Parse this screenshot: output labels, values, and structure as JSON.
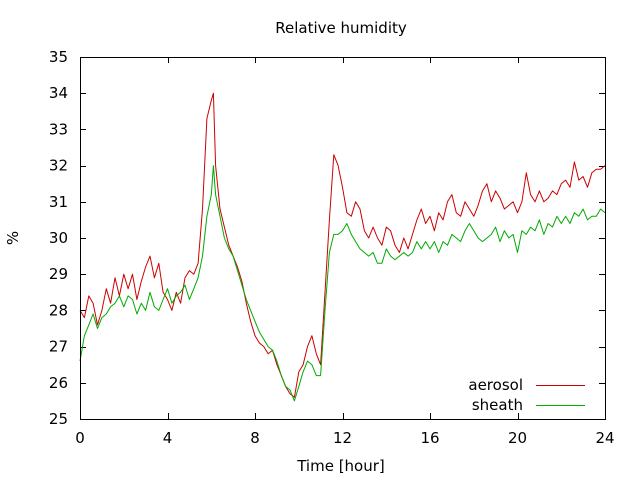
{
  "chart_data": {
    "type": "line",
    "title": "Relative humidity",
    "xlabel": "Time [hour]",
    "ylabel": "%",
    "xlim": [
      0,
      24
    ],
    "ylim": [
      25,
      35
    ],
    "xticks": [
      0,
      4,
      8,
      12,
      16,
      20,
      24
    ],
    "yticks": [
      25,
      26,
      27,
      28,
      29,
      30,
      31,
      32,
      33,
      34,
      35
    ],
    "grid": false,
    "legend_position": "bottom-right",
    "series": [
      {
        "name": "aerosol",
        "color": "#cc0000",
        "points": [
          [
            0.0,
            28.0
          ],
          [
            0.2,
            27.8
          ],
          [
            0.4,
            28.4
          ],
          [
            0.6,
            28.2
          ],
          [
            0.8,
            27.6
          ],
          [
            1.0,
            28.0
          ],
          [
            1.2,
            28.6
          ],
          [
            1.4,
            28.2
          ],
          [
            1.6,
            28.9
          ],
          [
            1.8,
            28.4
          ],
          [
            2.0,
            29.0
          ],
          [
            2.2,
            28.6
          ],
          [
            2.4,
            29.0
          ],
          [
            2.6,
            28.3
          ],
          [
            2.8,
            28.8
          ],
          [
            3.0,
            29.2
          ],
          [
            3.2,
            29.5
          ],
          [
            3.4,
            28.9
          ],
          [
            3.6,
            29.3
          ],
          [
            3.8,
            28.5
          ],
          [
            4.0,
            28.3
          ],
          [
            4.2,
            28.0
          ],
          [
            4.4,
            28.5
          ],
          [
            4.6,
            28.2
          ],
          [
            4.8,
            28.9
          ],
          [
            5.0,
            29.1
          ],
          [
            5.2,
            29.0
          ],
          [
            5.4,
            29.3
          ],
          [
            5.6,
            30.8
          ],
          [
            5.8,
            33.3
          ],
          [
            6.0,
            33.8
          ],
          [
            6.1,
            34.0
          ],
          [
            6.2,
            32.0
          ],
          [
            6.4,
            30.8
          ],
          [
            6.6,
            30.3
          ],
          [
            6.8,
            29.8
          ],
          [
            7.0,
            29.5
          ],
          [
            7.2,
            29.2
          ],
          [
            7.4,
            28.8
          ],
          [
            7.6,
            28.2
          ],
          [
            7.8,
            27.7
          ],
          [
            8.0,
            27.3
          ],
          [
            8.2,
            27.1
          ],
          [
            8.4,
            27.0
          ],
          [
            8.6,
            26.8
          ],
          [
            8.8,
            26.9
          ],
          [
            9.0,
            26.5
          ],
          [
            9.2,
            26.2
          ],
          [
            9.4,
            25.9
          ],
          [
            9.6,
            25.7
          ],
          [
            9.8,
            25.6
          ],
          [
            10.0,
            26.3
          ],
          [
            10.2,
            26.5
          ],
          [
            10.4,
            27.0
          ],
          [
            10.6,
            27.3
          ],
          [
            10.8,
            26.8
          ],
          [
            11.0,
            26.5
          ],
          [
            11.2,
            28.5
          ],
          [
            11.4,
            30.5
          ],
          [
            11.6,
            32.3
          ],
          [
            11.8,
            32.0
          ],
          [
            12.0,
            31.4
          ],
          [
            12.2,
            30.7
          ],
          [
            12.4,
            30.6
          ],
          [
            12.6,
            31.0
          ],
          [
            12.8,
            30.8
          ],
          [
            13.0,
            30.2
          ],
          [
            13.2,
            30.0
          ],
          [
            13.4,
            30.3
          ],
          [
            13.6,
            30.0
          ],
          [
            13.8,
            29.8
          ],
          [
            14.0,
            30.3
          ],
          [
            14.2,
            30.2
          ],
          [
            14.4,
            29.8
          ],
          [
            14.6,
            29.6
          ],
          [
            14.8,
            30.0
          ],
          [
            15.0,
            29.7
          ],
          [
            15.2,
            30.1
          ],
          [
            15.4,
            30.5
          ],
          [
            15.6,
            30.8
          ],
          [
            15.8,
            30.4
          ],
          [
            16.0,
            30.6
          ],
          [
            16.2,
            30.2
          ],
          [
            16.4,
            30.7
          ],
          [
            16.6,
            30.5
          ],
          [
            16.8,
            31.0
          ],
          [
            17.0,
            31.2
          ],
          [
            17.2,
            30.7
          ],
          [
            17.4,
            30.6
          ],
          [
            17.6,
            31.0
          ],
          [
            17.8,
            30.8
          ],
          [
            18.0,
            30.6
          ],
          [
            18.2,
            30.9
          ],
          [
            18.4,
            31.3
          ],
          [
            18.6,
            31.5
          ],
          [
            18.8,
            31.0
          ],
          [
            19.0,
            31.3
          ],
          [
            19.2,
            31.1
          ],
          [
            19.4,
            30.8
          ],
          [
            19.6,
            30.9
          ],
          [
            19.8,
            31.0
          ],
          [
            20.0,
            30.7
          ],
          [
            20.2,
            31.0
          ],
          [
            20.4,
            31.8
          ],
          [
            20.6,
            31.2
          ],
          [
            20.8,
            31.0
          ],
          [
            21.0,
            31.3
          ],
          [
            21.2,
            31.0
          ],
          [
            21.4,
            31.1
          ],
          [
            21.6,
            31.3
          ],
          [
            21.8,
            31.2
          ],
          [
            22.0,
            31.5
          ],
          [
            22.2,
            31.6
          ],
          [
            22.4,
            31.4
          ],
          [
            22.6,
            32.1
          ],
          [
            22.8,
            31.6
          ],
          [
            23.0,
            31.7
          ],
          [
            23.2,
            31.4
          ],
          [
            23.4,
            31.8
          ],
          [
            23.6,
            31.9
          ],
          [
            23.8,
            31.9
          ],
          [
            24.0,
            32.0
          ]
        ]
      },
      {
        "name": "sheath",
        "color": "#00aa00",
        "points": [
          [
            0.0,
            26.6
          ],
          [
            0.2,
            27.3
          ],
          [
            0.4,
            27.6
          ],
          [
            0.6,
            27.9
          ],
          [
            0.8,
            27.5
          ],
          [
            1.0,
            27.8
          ],
          [
            1.2,
            27.9
          ],
          [
            1.4,
            28.1
          ],
          [
            1.6,
            28.2
          ],
          [
            1.8,
            28.4
          ],
          [
            2.0,
            28.1
          ],
          [
            2.2,
            28.4
          ],
          [
            2.4,
            28.3
          ],
          [
            2.6,
            27.9
          ],
          [
            2.8,
            28.2
          ],
          [
            3.0,
            28.0
          ],
          [
            3.2,
            28.5
          ],
          [
            3.4,
            28.1
          ],
          [
            3.6,
            28.0
          ],
          [
            3.8,
            28.3
          ],
          [
            4.0,
            28.6
          ],
          [
            4.2,
            28.2
          ],
          [
            4.4,
            28.4
          ],
          [
            4.6,
            28.5
          ],
          [
            4.8,
            28.7
          ],
          [
            5.0,
            28.3
          ],
          [
            5.2,
            28.6
          ],
          [
            5.4,
            28.9
          ],
          [
            5.6,
            29.5
          ],
          [
            5.8,
            30.6
          ],
          [
            6.0,
            31.2
          ],
          [
            6.1,
            32.0
          ],
          [
            6.2,
            31.2
          ],
          [
            6.4,
            30.6
          ],
          [
            6.6,
            30.0
          ],
          [
            6.8,
            29.7
          ],
          [
            7.0,
            29.5
          ],
          [
            7.2,
            29.1
          ],
          [
            7.4,
            28.7
          ],
          [
            7.6,
            28.3
          ],
          [
            7.8,
            28.0
          ],
          [
            8.0,
            27.7
          ],
          [
            8.2,
            27.4
          ],
          [
            8.4,
            27.2
          ],
          [
            8.6,
            27.0
          ],
          [
            8.8,
            26.9
          ],
          [
            9.0,
            26.6
          ],
          [
            9.2,
            26.2
          ],
          [
            9.4,
            25.9
          ],
          [
            9.6,
            25.8
          ],
          [
            9.8,
            25.5
          ],
          [
            10.0,
            25.9
          ],
          [
            10.2,
            26.3
          ],
          [
            10.4,
            26.6
          ],
          [
            10.6,
            26.5
          ],
          [
            10.8,
            26.2
          ],
          [
            11.0,
            26.2
          ],
          [
            11.2,
            28.0
          ],
          [
            11.4,
            29.6
          ],
          [
            11.6,
            30.1
          ],
          [
            11.8,
            30.1
          ],
          [
            12.0,
            30.2
          ],
          [
            12.2,
            30.4
          ],
          [
            12.4,
            30.1
          ],
          [
            12.6,
            29.9
          ],
          [
            12.8,
            29.7
          ],
          [
            13.0,
            29.6
          ],
          [
            13.2,
            29.5
          ],
          [
            13.4,
            29.6
          ],
          [
            13.6,
            29.3
          ],
          [
            13.8,
            29.3
          ],
          [
            14.0,
            29.7
          ],
          [
            14.2,
            29.5
          ],
          [
            14.4,
            29.4
          ],
          [
            14.6,
            29.5
          ],
          [
            14.8,
            29.6
          ],
          [
            15.0,
            29.5
          ],
          [
            15.2,
            29.6
          ],
          [
            15.4,
            29.9
          ],
          [
            15.6,
            29.7
          ],
          [
            15.8,
            29.9
          ],
          [
            16.0,
            29.7
          ],
          [
            16.2,
            29.9
          ],
          [
            16.4,
            29.6
          ],
          [
            16.6,
            29.9
          ],
          [
            16.8,
            29.8
          ],
          [
            17.0,
            30.1
          ],
          [
            17.2,
            30.0
          ],
          [
            17.4,
            29.9
          ],
          [
            17.6,
            30.2
          ],
          [
            17.8,
            30.4
          ],
          [
            18.0,
            30.2
          ],
          [
            18.2,
            30.0
          ],
          [
            18.4,
            29.9
          ],
          [
            18.6,
            30.0
          ],
          [
            18.8,
            30.1
          ],
          [
            19.0,
            30.3
          ],
          [
            19.2,
            29.9
          ],
          [
            19.4,
            30.2
          ],
          [
            19.6,
            30.0
          ],
          [
            19.8,
            30.1
          ],
          [
            20.0,
            29.6
          ],
          [
            20.2,
            30.2
          ],
          [
            20.4,
            30.1
          ],
          [
            20.6,
            30.3
          ],
          [
            20.8,
            30.2
          ],
          [
            21.0,
            30.5
          ],
          [
            21.2,
            30.1
          ],
          [
            21.4,
            30.4
          ],
          [
            21.6,
            30.3
          ],
          [
            21.8,
            30.6
          ],
          [
            22.0,
            30.4
          ],
          [
            22.2,
            30.6
          ],
          [
            22.4,
            30.4
          ],
          [
            22.6,
            30.7
          ],
          [
            22.8,
            30.6
          ],
          [
            23.0,
            30.8
          ],
          [
            23.2,
            30.5
          ],
          [
            23.4,
            30.6
          ],
          [
            23.6,
            30.6
          ],
          [
            23.8,
            30.8
          ],
          [
            24.0,
            30.7
          ]
        ]
      }
    ]
  }
}
